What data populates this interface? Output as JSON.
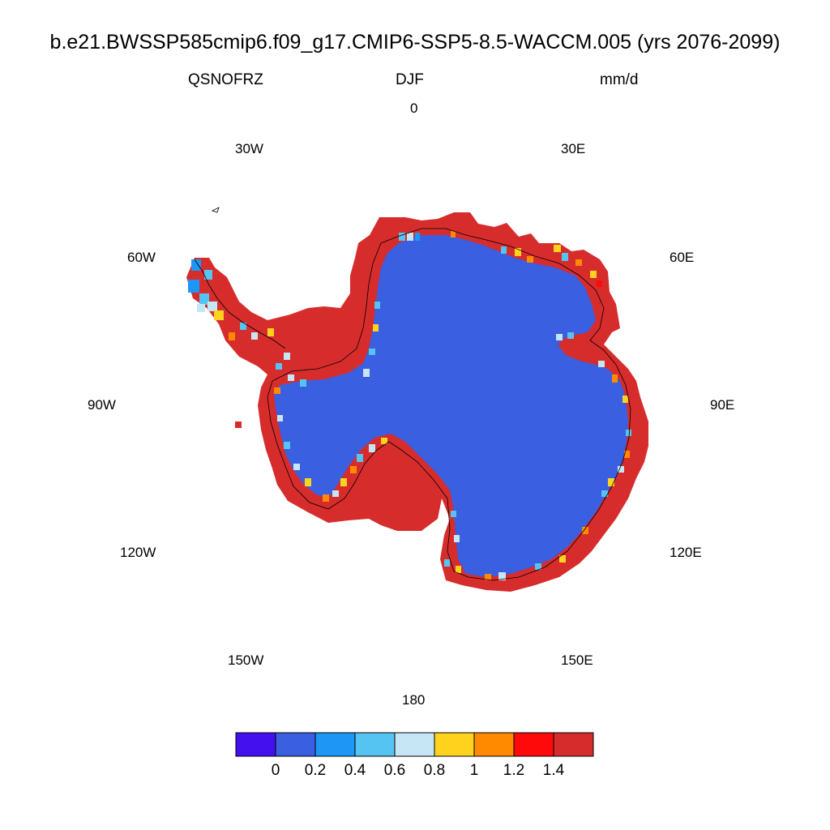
{
  "title": "b.e21.BWSSP585cmip6.f09_g17.CMIP6-SSP5-8.5-WACCM.005 (yrs 2076-2099)",
  "variable": "QSNOFRZ",
  "season": "DJF",
  "units": "mm/d",
  "longitude_labels": [
    "0",
    "30E",
    "60E",
    "90E",
    "120E",
    "150E",
    "180",
    "150W",
    "120W",
    "90W",
    "60W",
    "30W"
  ],
  "colorbar": {
    "colors": [
      "#4410ee",
      "#3a5fe0",
      "#1e96f5",
      "#56c4f2",
      "#c6e6f6",
      "#ffd21e",
      "#ff8a00",
      "#ff0a0a",
      "#d72c2c"
    ],
    "tick_labels": [
      "0",
      "0.2",
      "0.4",
      "0.6",
      "0.8",
      "1",
      "1.2",
      "1.4"
    ]
  },
  "map_colors": {
    "interior": "#3a5fe0",
    "coast": "#d72c2c",
    "coastline": "#000000"
  }
}
